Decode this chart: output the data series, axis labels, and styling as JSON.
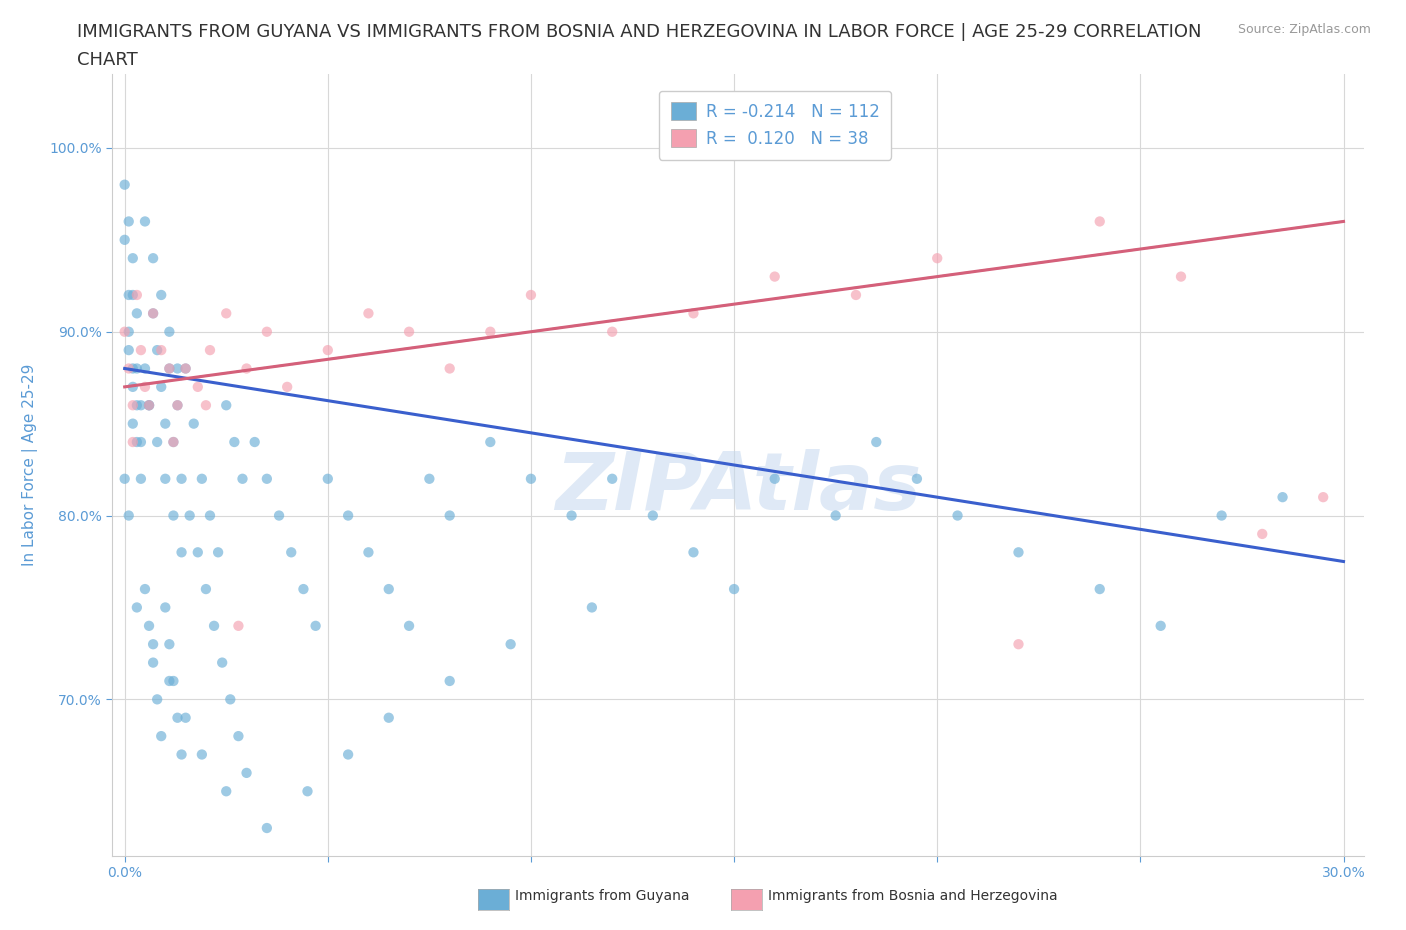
{
  "title_line1": "IMMIGRANTS FROM GUYANA VS IMMIGRANTS FROM BOSNIA AND HERZEGOVINA IN LABOR FORCE | AGE 25-29 CORRELATION",
  "title_line2": "CHART",
  "source_text": "Source: ZipAtlas.com",
  "ylabel": "In Labor Force | Age 25-29",
  "xlim": [
    -0.003,
    0.305
  ],
  "ylim": [
    0.615,
    1.04
  ],
  "yticks": [
    0.7,
    0.8,
    0.9,
    1.0
  ],
  "ytick_labels": [
    "70.0%",
    "80.0%",
    "90.0%",
    "100.0%"
  ],
  "xticks": [
    0.0,
    0.05,
    0.1,
    0.15,
    0.2,
    0.25,
    0.3
  ],
  "xtick_labels": [
    "0.0%",
    "",
    "",
    "",
    "",
    "",
    "30.0%"
  ],
  "guyana_color": "#6baed6",
  "bosnia_color": "#f4a0b0",
  "guyana_line_color": "#3a5fcd",
  "bosnia_line_color": "#d4607a",
  "background_color": "#ffffff",
  "grid_color": "#d8d8d8",
  "title_color": "#333333",
  "axis_color": "#5b9bd5",
  "font_size_title": 13,
  "font_size_axis": 11,
  "font_size_tick": 10,
  "font_size_legend": 12,
  "scatter_size": 55,
  "scatter_alpha": 0.65,
  "guyana_line_x0": 0.0,
  "guyana_line_x1": 0.3,
  "guyana_line_y0": 0.88,
  "guyana_line_y1": 0.775,
  "bosnia_line_x0": 0.0,
  "bosnia_line_x1": 0.3,
  "bosnia_line_y0": 0.87,
  "bosnia_line_y1": 0.96,
  "watermark_text": "ZIPAtlas",
  "watermark_color": "#c5d8ef",
  "watermark_alpha": 0.55,
  "watermark_fontsize": 58,
  "legend_label1": "R = -0.214   N = 112",
  "legend_label2": "R =  0.120   N = 38"
}
